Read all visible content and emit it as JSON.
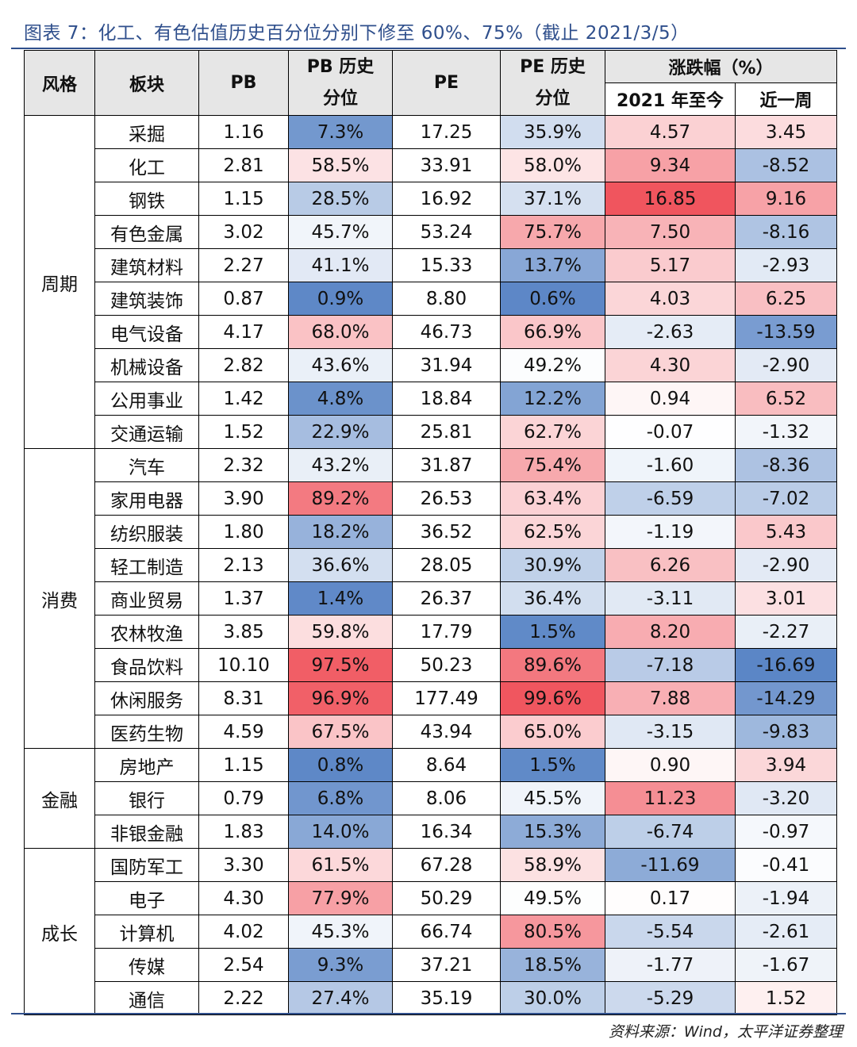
{
  "title": "图表 7：化工、有色估值历史百分位分别下修至 60%、75%（截止 2021/3/5）",
  "source": "资料来源：Wind，太平洋证券整理",
  "chart_data": {
    "type": "table",
    "headers": {
      "style": "风格",
      "sector": "板块",
      "pb": "PB",
      "pb_pct_line1": "PB 历史",
      "pb_pct_line2": "分位",
      "pe": "PE",
      "pe_pct_line1": "PE 历史",
      "pe_pct_line2": "分位",
      "change": "涨跌幅（%）",
      "ytd": "2021 年至今",
      "week": "近一周"
    },
    "groups": [
      {
        "style": "周期",
        "rows": [
          {
            "sector": "采掘",
            "pb": "1.16",
            "pb_pct": "7.3%",
            "pe": "17.25",
            "pe_pct": "35.9%",
            "ytd": "4.57",
            "week": "3.45"
          },
          {
            "sector": "化工",
            "pb": "2.81",
            "pb_pct": "58.5%",
            "pe": "33.91",
            "pe_pct": "58.0%",
            "ytd": "9.34",
            "week": "-8.52"
          },
          {
            "sector": "钢铁",
            "pb": "1.15",
            "pb_pct": "28.5%",
            "pe": "16.92",
            "pe_pct": "37.1%",
            "ytd": "16.85",
            "week": "9.16"
          },
          {
            "sector": "有色金属",
            "pb": "3.02",
            "pb_pct": "45.7%",
            "pe": "53.24",
            "pe_pct": "75.7%",
            "ytd": "7.50",
            "week": "-8.16"
          },
          {
            "sector": "建筑材料",
            "pb": "2.27",
            "pb_pct": "41.1%",
            "pe": "15.33",
            "pe_pct": "13.7%",
            "ytd": "5.17",
            "week": "-2.93"
          },
          {
            "sector": "建筑装饰",
            "pb": "0.87",
            "pb_pct": "0.9%",
            "pe": "8.80",
            "pe_pct": "0.6%",
            "ytd": "4.03",
            "week": "6.25"
          },
          {
            "sector": "电气设备",
            "pb": "4.17",
            "pb_pct": "68.0%",
            "pe": "46.73",
            "pe_pct": "66.9%",
            "ytd": "-2.63",
            "week": "-13.59"
          },
          {
            "sector": "机械设备",
            "pb": "2.82",
            "pb_pct": "43.6%",
            "pe": "31.94",
            "pe_pct": "49.2%",
            "ytd": "4.30",
            "week": "-2.90"
          },
          {
            "sector": "公用事业",
            "pb": "1.42",
            "pb_pct": "4.8%",
            "pe": "18.84",
            "pe_pct": "12.2%",
            "ytd": "0.94",
            "week": "6.52"
          },
          {
            "sector": "交通运输",
            "pb": "1.52",
            "pb_pct": "22.9%",
            "pe": "25.81",
            "pe_pct": "62.7%",
            "ytd": "-0.07",
            "week": "-1.32"
          }
        ]
      },
      {
        "style": "消费",
        "rows": [
          {
            "sector": "汽车",
            "pb": "2.32",
            "pb_pct": "43.2%",
            "pe": "31.87",
            "pe_pct": "75.4%",
            "ytd": "-1.60",
            "week": "-8.36"
          },
          {
            "sector": "家用电器",
            "pb": "3.90",
            "pb_pct": "89.2%",
            "pe": "26.53",
            "pe_pct": "63.4%",
            "ytd": "-6.59",
            "week": "-7.02"
          },
          {
            "sector": "纺织服装",
            "pb": "1.80",
            "pb_pct": "18.2%",
            "pe": "36.52",
            "pe_pct": "62.5%",
            "ytd": "-1.19",
            "week": "5.43"
          },
          {
            "sector": "轻工制造",
            "pb": "2.13",
            "pb_pct": "36.6%",
            "pe": "28.05",
            "pe_pct": "30.9%",
            "ytd": "6.26",
            "week": "-2.90"
          },
          {
            "sector": "商业贸易",
            "pb": "1.37",
            "pb_pct": "1.4%",
            "pe": "26.37",
            "pe_pct": "36.4%",
            "ytd": "-3.11",
            "week": "3.01"
          },
          {
            "sector": "农林牧渔",
            "pb": "3.85",
            "pb_pct": "59.8%",
            "pe": "17.79",
            "pe_pct": "1.5%",
            "ytd": "8.20",
            "week": "-2.27"
          },
          {
            "sector": "食品饮料",
            "pb": "10.10",
            "pb_pct": "97.5%",
            "pe": "50.23",
            "pe_pct": "89.6%",
            "ytd": "-7.18",
            "week": "-16.69"
          },
          {
            "sector": "休闲服务",
            "pb": "8.31",
            "pb_pct": "96.9%",
            "pe": "177.49",
            "pe_pct": "99.6%",
            "ytd": "7.88",
            "week": "-14.29"
          },
          {
            "sector": "医药生物",
            "pb": "4.59",
            "pb_pct": "67.5%",
            "pe": "43.94",
            "pe_pct": "65.0%",
            "ytd": "-3.15",
            "week": "-9.83"
          }
        ]
      },
      {
        "style": "金融",
        "rows": [
          {
            "sector": "房地产",
            "pb": "1.15",
            "pb_pct": "0.8%",
            "pe": "8.64",
            "pe_pct": "1.5%",
            "ytd": "0.90",
            "week": "3.94"
          },
          {
            "sector": "银行",
            "pb": "0.79",
            "pb_pct": "6.8%",
            "pe": "8.06",
            "pe_pct": "45.5%",
            "ytd": "11.23",
            "week": "-3.20"
          },
          {
            "sector": "非银金融",
            "pb": "1.83",
            "pb_pct": "14.0%",
            "pe": "16.34",
            "pe_pct": "15.3%",
            "ytd": "-6.74",
            "week": "-0.97"
          }
        ]
      },
      {
        "style": "成长",
        "rows": [
          {
            "sector": "国防军工",
            "pb": "3.30",
            "pb_pct": "61.5%",
            "pe": "67.28",
            "pe_pct": "58.9%",
            "ytd": "-11.69",
            "week": "-0.41"
          },
          {
            "sector": "电子",
            "pb": "4.30",
            "pb_pct": "77.9%",
            "pe": "50.29",
            "pe_pct": "49.5%",
            "ytd": "0.17",
            "week": "-1.94"
          },
          {
            "sector": "计算机",
            "pb": "4.02",
            "pb_pct": "45.3%",
            "pe": "66.74",
            "pe_pct": "80.5%",
            "ytd": "-5.54",
            "week": "-2.61"
          },
          {
            "sector": "传媒",
            "pb": "2.54",
            "pb_pct": "9.3%",
            "pe": "37.21",
            "pe_pct": "18.5%",
            "ytd": "-1.77",
            "week": "-1.67"
          },
          {
            "sector": "通信",
            "pb": "2.22",
            "pb_pct": "27.4%",
            "pe": "35.19",
            "pe_pct": "30.0%",
            "ytd": "-5.29",
            "week": "1.52"
          }
        ]
      }
    ],
    "colors": {
      "low": "#5b86c6",
      "mid": "#ffffff",
      "high": "#f0555e",
      "header_bg": "#e6e6e6",
      "title": "#2f4f8c"
    }
  }
}
